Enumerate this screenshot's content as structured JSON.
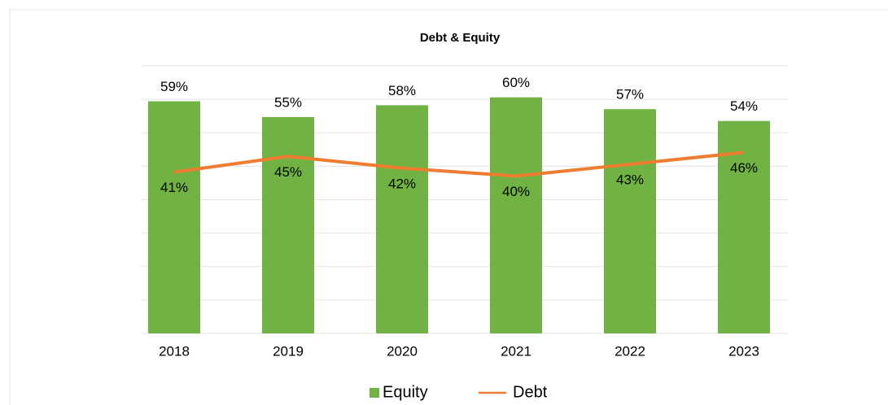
{
  "chart_data": {
    "type": "bar_line",
    "title": "Debt & Equity",
    "categories": [
      "2018",
      "2019",
      "2020",
      "2021",
      "2022",
      "2023"
    ],
    "series": [
      {
        "name": "Equity",
        "type": "bar",
        "color": "#70b244",
        "values": [
          59,
          55,
          58,
          60,
          57,
          54
        ],
        "value_labels": [
          "59%",
          "55%",
          "58%",
          "60%",
          "57%",
          "54%"
        ]
      },
      {
        "name": "Debt",
        "type": "line",
        "color": "#ee7d31",
        "values": [
          41,
          45,
          42,
          40,
          43,
          46
        ],
        "value_labels": [
          "41%",
          "45%",
          "42%",
          "40%",
          "43%",
          "46%"
        ]
      }
    ],
    "ylim": [
      0,
      68
    ],
    "yticks": [
      0,
      8.5,
      17,
      25.5,
      34,
      42.5,
      51,
      59.5,
      68
    ],
    "grid": true,
    "legend": "bottom"
  }
}
